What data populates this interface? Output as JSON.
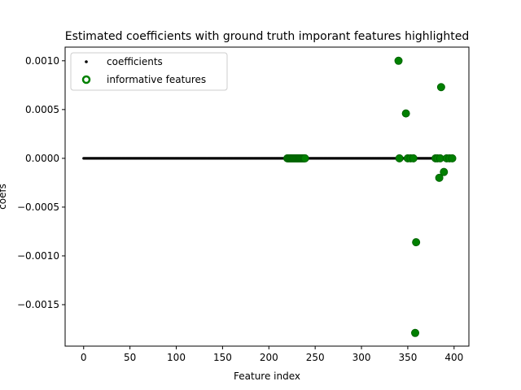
{
  "chart_data": {
    "type": "scatter",
    "title": "Estimated coefficients with ground truth imporant features highlighted",
    "x_label": "Feature index",
    "y_label": "coefs",
    "xlim": [
      -20,
      416
    ],
    "ylim": [
      -0.001925,
      0.00114
    ],
    "xticks": [
      0,
      50,
      100,
      150,
      200,
      250,
      300,
      350,
      400
    ],
    "yticks": [
      {
        "value": 0.001,
        "label": "0.0010"
      },
      {
        "value": 0.0005,
        "label": "0.0005"
      },
      {
        "value": 0,
        "label": "0.0000"
      },
      {
        "value": -0.0005,
        "label": "−0.0005"
      },
      {
        "value": -0.001,
        "label": "−0.0010"
      },
      {
        "value": -0.0015,
        "label": "−0.0015"
      }
    ],
    "legend": "upper left",
    "series": [
      {
        "name": "coefficients",
        "color": "#000000",
        "marker": "dot",
        "x": [
          0,
          1,
          2,
          3,
          4,
          5,
          6,
          7,
          8,
          9,
          10,
          11,
          12,
          13,
          14,
          15,
          16,
          17,
          18,
          19,
          20,
          21,
          22,
          23,
          24,
          25,
          26,
          27,
          28,
          29,
          30,
          31,
          32,
          33,
          34,
          35,
          36,
          37,
          38,
          39,
          40,
          41,
          42,
          43,
          44,
          45,
          46,
          47,
          48,
          49,
          50,
          51,
          52,
          53,
          54,
          55,
          56,
          57,
          58,
          59,
          60,
          61,
          62,
          63,
          64,
          65,
          66,
          67,
          68,
          69,
          70,
          71,
          72,
          73,
          74,
          75,
          76,
          77,
          78,
          79,
          80,
          81,
          82,
          83,
          84,
          85,
          86,
          87,
          88,
          89,
          90,
          91,
          92,
          93,
          94,
          95,
          96,
          97,
          98,
          99,
          100,
          101,
          102,
          103,
          104,
          105,
          106,
          107,
          108,
          109,
          110,
          111,
          112,
          113,
          114,
          115,
          116,
          117,
          118,
          119,
          120,
          121,
          122,
          123,
          124,
          125,
          126,
          127,
          128,
          129,
          130,
          131,
          132,
          133,
          134,
          135,
          136,
          137,
          138,
          139,
          140,
          141,
          142,
          143,
          144,
          145,
          146,
          147,
          148,
          149,
          150,
          151,
          152,
          153,
          154,
          155,
          156,
          157,
          158,
          159,
          160,
          161,
          162,
          163,
          164,
          165,
          166,
          167,
          168,
          169,
          170,
          171,
          172,
          173,
          174,
          175,
          176,
          177,
          178,
          179,
          180,
          181,
          182,
          183,
          184,
          185,
          186,
          187,
          188,
          189,
          190,
          191,
          192,
          193,
          194,
          195,
          196,
          197,
          198,
          199,
          200,
          201,
          202,
          203,
          204,
          205,
          206,
          207,
          208,
          209,
          210,
          211,
          212,
          213,
          214,
          215,
          216,
          217,
          218,
          219,
          220,
          221,
          222,
          223,
          224,
          225,
          226,
          227,
          228,
          229,
          230,
          231,
          232,
          233,
          234,
          235,
          236,
          237,
          238,
          239,
          240,
          241,
          242,
          243,
          244,
          245,
          246,
          247,
          248,
          249,
          250,
          251,
          252,
          253,
          254,
          255,
          256,
          257,
          258,
          259,
          260,
          261,
          262,
          263,
          264,
          265,
          266,
          267,
          268,
          269,
          270,
          271,
          272,
          273,
          274,
          275,
          276,
          277,
          278,
          279,
          280,
          281,
          282,
          283,
          284,
          285,
          286,
          287,
          288,
          289,
          290,
          291,
          292,
          293,
          294,
          295,
          296,
          297,
          298,
          299,
          300,
          301,
          302,
          303,
          304,
          305,
          306,
          307,
          308,
          309,
          310,
          311,
          312,
          313,
          314,
          315,
          316,
          317,
          318,
          319,
          320,
          321,
          322,
          323,
          324,
          325,
          326,
          327,
          328,
          329,
          330,
          331,
          332,
          333,
          334,
          335,
          336,
          337,
          338,
          339,
          340,
          341,
          342,
          343,
          344,
          345,
          346,
          347,
          348,
          349,
          350,
          351,
          352,
          353,
          354,
          355,
          356,
          357,
          358,
          359,
          360,
          361,
          362,
          363,
          364,
          365,
          366,
          367,
          368,
          369,
          370,
          371,
          372,
          373,
          374,
          375,
          376,
          377,
          378,
          379,
          380,
          381,
          382,
          383,
          384,
          385,
          386,
          387,
          388,
          389,
          390,
          391,
          392,
          393,
          394,
          395,
          396,
          397,
          398,
          399
        ],
        "values": [
          0,
          0,
          0,
          0,
          0,
          0,
          0,
          0,
          0,
          0,
          0,
          0,
          0,
          0,
          0,
          0,
          0,
          0,
          0,
          0,
          0,
          0,
          0,
          0,
          0,
          0,
          0,
          0,
          0,
          0,
          0,
          0,
          0,
          0,
          0,
          0,
          0,
          0,
          0,
          0,
          0,
          0,
          0,
          0,
          0,
          0,
          0,
          0,
          0,
          0,
          0,
          0,
          0,
          0,
          0,
          0,
          0,
          0,
          0,
          0,
          0,
          0,
          0,
          0,
          0,
          0,
          0,
          0,
          0,
          0,
          0,
          0,
          0,
          0,
          0,
          0,
          0,
          0,
          0,
          0,
          0,
          0,
          0,
          0,
          0,
          0,
          0,
          0,
          0,
          0,
          0,
          0,
          0,
          0,
          0,
          0,
          0,
          0,
          0,
          0,
          0,
          0,
          0,
          0,
          0,
          0,
          0,
          0,
          0,
          0,
          0,
          0,
          0,
          0,
          0,
          0,
          0,
          0,
          0,
          0,
          0,
          0,
          0,
          0,
          0,
          0,
          0,
          0,
          0,
          0,
          0,
          0,
          0,
          0,
          0,
          0,
          0,
          0,
          0,
          0,
          0,
          0,
          0,
          0,
          0,
          0,
          0,
          0,
          0,
          0,
          0,
          0,
          0,
          0,
          0,
          0,
          0,
          0,
          0,
          0,
          0,
          0,
          0,
          0,
          0,
          0,
          0,
          0,
          0,
          0,
          0,
          0,
          0,
          0,
          0,
          0,
          0,
          0,
          0,
          0,
          0,
          0,
          0,
          0,
          0,
          0,
          0,
          0,
          0,
          0,
          0,
          0,
          0,
          0,
          0,
          0,
          0,
          0,
          0,
          0,
          0,
          0,
          0,
          0,
          0,
          0,
          0,
          0,
          0,
          0,
          0,
          0,
          0,
          0,
          0,
          0,
          0,
          0,
          0,
          0,
          0,
          0,
          0,
          0,
          0,
          0,
          0,
          0,
          0,
          0,
          0,
          0,
          0,
          0,
          0,
          0,
          0,
          0,
          0,
          0,
          0,
          0,
          0,
          0,
          0,
          0,
          0,
          0,
          0,
          0,
          0,
          0,
          0,
          0,
          0,
          0,
          0,
          0,
          0,
          0,
          0,
          0,
          0,
          0,
          0,
          0,
          0,
          0,
          0,
          0,
          0,
          0,
          0,
          0,
          0,
          0,
          0,
          0,
          0,
          0,
          0,
          0,
          0,
          0,
          0,
          0,
          0,
          0,
          0,
          0,
          0,
          0,
          0,
          0,
          0,
          0,
          0,
          0,
          0,
          0,
          0,
          0,
          0,
          0,
          0,
          0,
          0,
          0,
          0,
          0,
          0,
          0,
          0,
          0,
          0,
          0,
          0,
          0,
          0,
          0,
          0,
          0,
          0,
          0,
          0,
          0,
          0,
          0,
          0,
          0,
          0,
          0,
          0,
          0,
          0,
          0,
          0,
          0,
          0,
          0,
          0.001,
          0,
          0,
          0,
          0,
          0,
          0,
          0,
          0.00046,
          0,
          0,
          0,
          0,
          0,
          0,
          0,
          0,
          0,
          -0.00179,
          -0.00086,
          0,
          0,
          0,
          0,
          0,
          0,
          0,
          0,
          0,
          0,
          0,
          0,
          0,
          0,
          0,
          0,
          0,
          0,
          0,
          0,
          0,
          0,
          0,
          0,
          -0.0002,
          0,
          0.00073,
          0,
          0,
          -0.00014,
          0,
          0,
          0,
          0,
          0,
          0,
          0,
          0,
          0,
          0
        ]
      },
      {
        "name": "informative features",
        "color": "#008000",
        "marker": "circle",
        "x": [
          220,
          221,
          222,
          223,
          224,
          225,
          226,
          227,
          228,
          229,
          230,
          231,
          232,
          233,
          234,
          235,
          236,
          237,
          238,
          239,
          340,
          341,
          348,
          350,
          353,
          356,
          358,
          359,
          380,
          382,
          384,
          385,
          386,
          389,
          392,
          395,
          398
        ],
        "values": [
          0,
          0,
          0,
          0,
          0,
          0,
          0,
          0,
          0,
          0,
          0,
          0,
          0,
          0,
          0,
          0,
          0,
          0,
          0,
          0,
          0.001,
          0,
          0.00046,
          0,
          0,
          0,
          -0.00179,
          -0.00086,
          0,
          0,
          -0.0002,
          0,
          0.00073,
          -0.00014,
          0,
          0,
          0
        ]
      }
    ]
  }
}
